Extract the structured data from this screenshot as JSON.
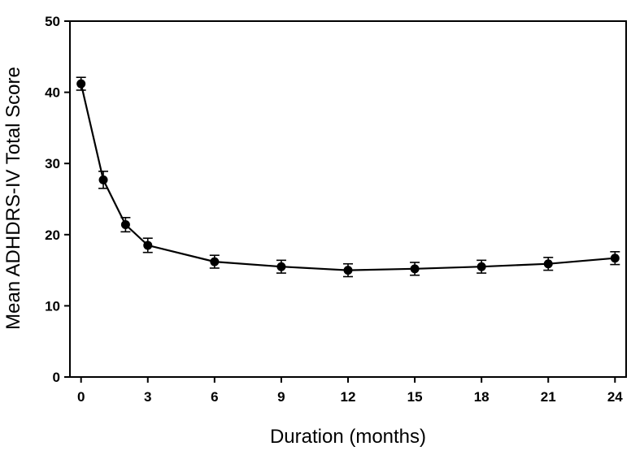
{
  "chart_data": {
    "type": "line",
    "xlabel": "Duration (months)",
    "ylabel": "Mean ADHDRS-IV Total Score",
    "xlim": [
      -0.5,
      24.5
    ],
    "ylim": [
      0,
      50
    ],
    "x_ticks": [
      0,
      3,
      6,
      9,
      12,
      15,
      18,
      21,
      24
    ],
    "y_ticks": [
      0,
      10,
      20,
      30,
      40,
      50
    ],
    "grid": false,
    "series": [
      {
        "x": [
          0,
          1,
          2,
          3,
          6,
          9,
          12,
          15,
          18,
          21,
          24
        ],
        "y": [
          41.2,
          27.7,
          21.4,
          18.5,
          16.2,
          15.5,
          15.0,
          15.2,
          15.5,
          15.9,
          16.7
        ],
        "error": [
          0.9,
          1.2,
          1.0,
          1.0,
          0.9,
          0.9,
          0.9,
          0.9,
          0.9,
          0.9,
          0.9
        ]
      }
    ],
    "colors": {
      "line": "#000000",
      "marker": "#000000",
      "axis": "#000000"
    }
  }
}
